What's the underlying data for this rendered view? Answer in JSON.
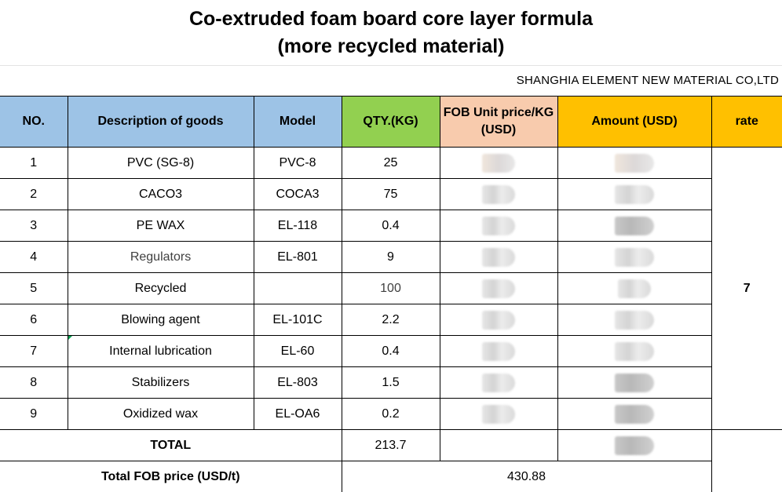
{
  "title_line1": "Co-extruded foam board core layer formula",
  "title_line2": "(more recycled material)",
  "company": "SHANGHIA  ELEMENT NEW MATERIAL CO,LTD",
  "colors": {
    "header_blue": "#9dc3e6",
    "header_green": "#92d050",
    "header_peach": "#f8cbad",
    "header_gold": "#ffc000"
  },
  "headers": {
    "no": "NO.",
    "description": "Description of goods",
    "model": "Model",
    "qty": "QTY.(KG)",
    "unit_price": "FOB Unit price/KG  (USD)",
    "amount": "Amount  (USD)",
    "rate": "rate"
  },
  "rows": [
    {
      "no": "1",
      "description": "PVC  (SG-8)",
      "model": "PVC-8",
      "qty": "25"
    },
    {
      "no": "2",
      "description": "CACO3",
      "model": "COCA3",
      "qty": "75"
    },
    {
      "no": "3",
      "description": "PE WAX",
      "model": "EL-118",
      "qty": "0.4"
    },
    {
      "no": "4",
      "description": "Regulators",
      "model": "EL-801",
      "qty": "9"
    },
    {
      "no": "5",
      "description": "Recycled",
      "model": "",
      "qty": "100"
    },
    {
      "no": "6",
      "description": "Blowing agent",
      "model": "EL-101C",
      "qty": "2.2"
    },
    {
      "no": "7",
      "description": "Internal lubrication",
      "model": "EL-60",
      "qty": "0.4"
    },
    {
      "no": "8",
      "description": "Stabilizers",
      "model": "EL-803",
      "qty": "1.5"
    },
    {
      "no": "9",
      "description": "Oxidized wax",
      "model": "EL-OA6",
      "qty": "0.2"
    }
  ],
  "rate_value": "7",
  "total": {
    "label": "TOTAL",
    "qty": "213.7"
  },
  "total_fob": {
    "label": "Total FOB price (USD/t)",
    "value": "430.88"
  }
}
